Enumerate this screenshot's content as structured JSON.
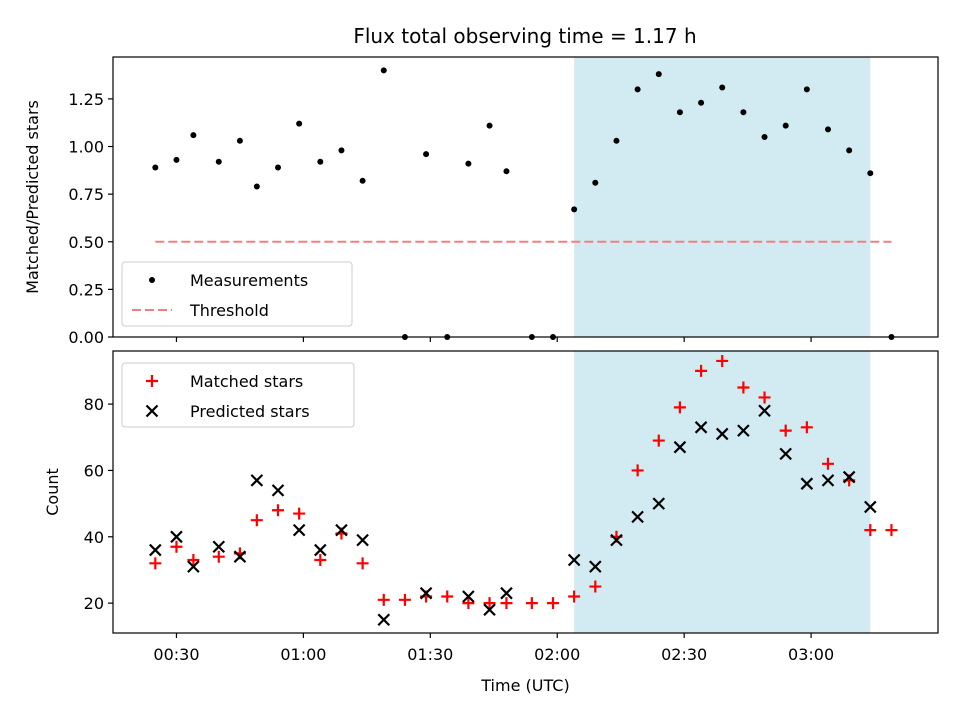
{
  "title": "Flux total observing time = 1.17 h",
  "chart_data": [
    {
      "type": "scatter",
      "panel": "top",
      "title": "Flux total observing time = 1.17 h",
      "xlabel": "",
      "ylabel": "Matched/Predicted stars",
      "xlim": [
        "00:15",
        "03:30"
      ],
      "ylim": [
        0,
        1.47
      ],
      "yticks": [
        0.0,
        0.25,
        0.5,
        0.75,
        1.0,
        1.25
      ],
      "ytick_labels": [
        "0.00",
        "0.25",
        "0.50",
        "0.75",
        "1.00",
        "1.25"
      ],
      "xticks": [
        "00:30",
        "01:00",
        "01:30",
        "02:00",
        "02:30",
        "03:00"
      ],
      "grid": false,
      "legend": "bottom-left",
      "shaded_span": {
        "x": [
          "02:04",
          "03:14"
        ],
        "color": "#add8e6"
      },
      "series": [
        {
          "name": "Measurements",
          "kind": "scatter",
          "color": "#000000",
          "x": [
            "00:25",
            "00:30",
            "00:34",
            "00:40",
            "00:45",
            "00:49",
            "00:54",
            "00:59",
            "01:04",
            "01:09",
            "01:14",
            "01:19",
            "01:24",
            "01:29",
            "01:34",
            "01:39",
            "01:44",
            "01:48",
            "01:54",
            "01:59",
            "02:04",
            "02:09",
            "02:14",
            "02:19",
            "02:24",
            "02:29",
            "02:34",
            "02:39",
            "02:44",
            "02:49",
            "02:54",
            "02:59",
            "03:04",
            "03:09",
            "03:14",
            "03:19"
          ],
          "y": [
            0.89,
            0.93,
            1.06,
            0.92,
            1.03,
            0.79,
            0.89,
            1.12,
            0.92,
            0.98,
            0.82,
            1.4,
            0.0,
            0.96,
            0.0,
            0.91,
            1.11,
            0.87,
            0.0,
            0.0,
            0.67,
            0.81,
            1.03,
            1.3,
            1.38,
            1.18,
            1.23,
            1.31,
            1.18,
            1.05,
            1.11,
            1.3,
            1.09,
            0.98,
            0.86,
            0.0
          ]
        },
        {
          "name": "Threshold",
          "kind": "line",
          "style": "dashed",
          "color": "#f08080",
          "x": [
            "00:25",
            "03:19"
          ],
          "y": [
            0.5,
            0.5
          ]
        }
      ]
    },
    {
      "type": "scatter",
      "panel": "bottom",
      "xlabel": "Time (UTC)",
      "ylabel": "Count",
      "xlim": [
        "00:15",
        "03:30"
      ],
      "ylim": [
        11,
        96
      ],
      "yticks": [
        20,
        40,
        60,
        80
      ],
      "xticks": [
        "00:30",
        "01:00",
        "01:30",
        "02:00",
        "02:30",
        "03:00"
      ],
      "grid": false,
      "legend": "top-left",
      "shaded_span": {
        "x": [
          "02:04",
          "03:14"
        ],
        "color": "#add8e6"
      },
      "series": [
        {
          "name": "Matched stars",
          "marker": "plus",
          "color": "#ff0000",
          "x": [
            "00:25",
            "00:30",
            "00:34",
            "00:40",
            "00:45",
            "00:49",
            "00:54",
            "00:59",
            "01:04",
            "01:09",
            "01:14",
            "01:19",
            "01:24",
            "01:29",
            "01:34",
            "01:39",
            "01:44",
            "01:48",
            "01:54",
            "01:59",
            "02:04",
            "02:09",
            "02:14",
            "02:19",
            "02:24",
            "02:29",
            "02:34",
            "02:39",
            "02:44",
            "02:49",
            "02:54",
            "02:59",
            "03:04",
            "03:09",
            "03:14",
            "03:19"
          ],
          "y": [
            32,
            37,
            33,
            34,
            35,
            45,
            48,
            47,
            33,
            41,
            32,
            21,
            21,
            22,
            22,
            20,
            20,
            20,
            20,
            20,
            22,
            25,
            40,
            60,
            69,
            79,
            90,
            93,
            85,
            82,
            72,
            73,
            62,
            57,
            42,
            42
          ]
        },
        {
          "name": "Predicted stars",
          "marker": "x",
          "color": "#000000",
          "x": [
            "00:25",
            "00:30",
            "00:34",
            "00:40",
            "00:45",
            "00:49",
            "00:54",
            "00:59",
            "01:04",
            "01:09",
            "01:14",
            "01:19",
            "01:29",
            "01:39",
            "01:44",
            "01:48",
            "02:04",
            "02:09",
            "02:14",
            "02:19",
            "02:24",
            "02:29",
            "02:34",
            "02:39",
            "02:44",
            "02:49",
            "02:54",
            "02:59",
            "03:04",
            "03:09",
            "03:14"
          ],
          "y": [
            36,
            40,
            31,
            37,
            34,
            57,
            54,
            42,
            36,
            42,
            39,
            15,
            23,
            22,
            18,
            23,
            33,
            31,
            39,
            46,
            50,
            67,
            73,
            71,
            72,
            78,
            65,
            56,
            57,
            58,
            49
          ]
        }
      ]
    }
  ]
}
